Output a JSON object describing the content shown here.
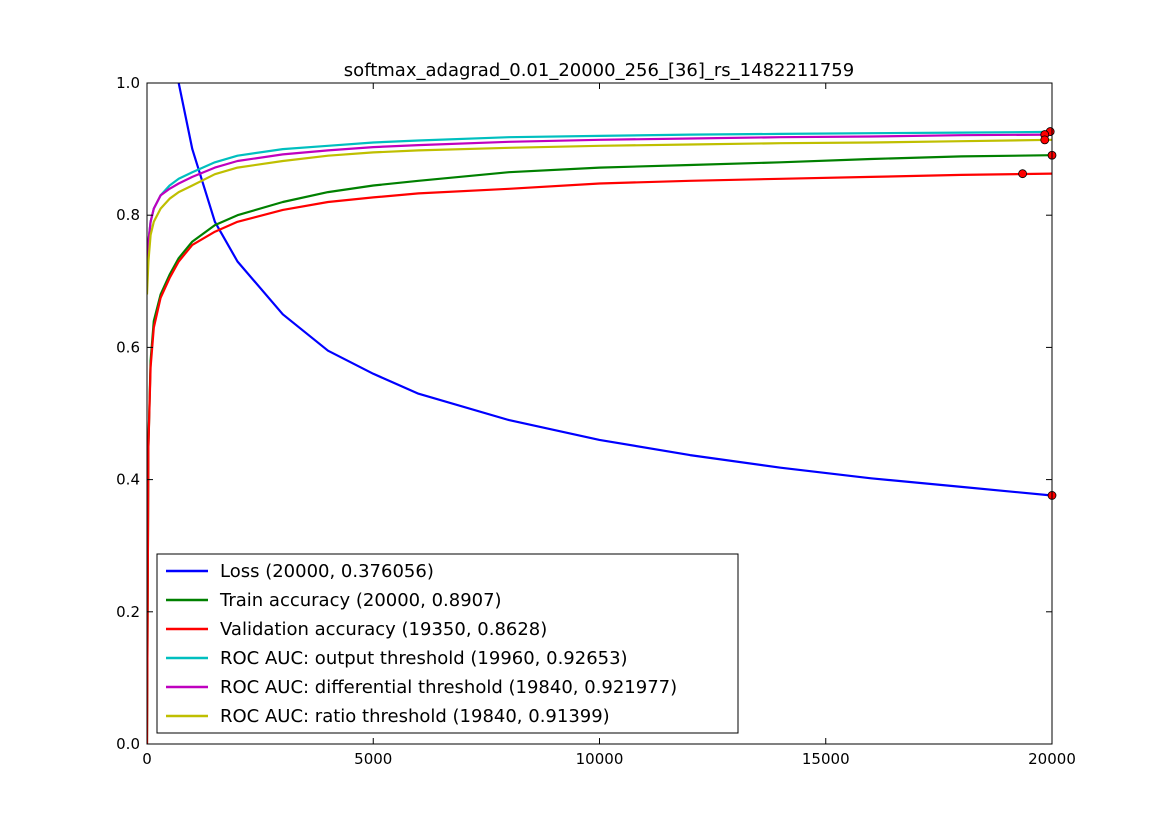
{
  "chart_data": {
    "type": "line",
    "title": "softmax_adagrad_0.01_20000_256_[36]_rs_1482211759",
    "xlabel": "",
    "ylabel": "",
    "xlim": [
      0,
      20000
    ],
    "ylim": [
      0.0,
      1.0
    ],
    "xticks": [
      0,
      5000,
      10000,
      15000,
      20000
    ],
    "yticks": [
      0.0,
      0.2,
      0.4,
      0.6,
      0.8,
      1.0
    ],
    "xtick_labels": [
      "0",
      "5000",
      "10000",
      "15000",
      "20000"
    ],
    "ytick_labels": [
      "0.0",
      "0.2",
      "0.4",
      "0.6",
      "0.8",
      "1.0"
    ],
    "grid": false,
    "legend_position": "lower-left",
    "series": [
      {
        "name": "Loss (20000, 0.376056)",
        "color": "#0000ff",
        "x": [
          700,
          1000,
          1500,
          2000,
          3000,
          4000,
          5000,
          6000,
          8000,
          10000,
          12000,
          14000,
          16000,
          18000,
          20000
        ],
        "y": [
          1.0,
          0.9,
          0.79,
          0.73,
          0.65,
          0.595,
          0.56,
          0.53,
          0.49,
          0.46,
          0.437,
          0.418,
          0.402,
          0.389,
          0.376
        ],
        "marker": {
          "x": 20000,
          "y": 0.376056
        }
      },
      {
        "name": "Train accuracy (20000, 0.8907)",
        "color": "#008000",
        "x": [
          0,
          30,
          80,
          150,
          300,
          500,
          700,
          1000,
          1500,
          2000,
          3000,
          4000,
          5000,
          6000,
          8000,
          10000,
          12000,
          14000,
          16000,
          18000,
          20000
        ],
        "y": [
          0.0,
          0.45,
          0.58,
          0.64,
          0.68,
          0.71,
          0.735,
          0.76,
          0.785,
          0.8,
          0.82,
          0.835,
          0.845,
          0.852,
          0.865,
          0.872,
          0.876,
          0.88,
          0.885,
          0.889,
          0.8907
        ],
        "marker": {
          "x": 20000,
          "y": 0.8907
        }
      },
      {
        "name": "Validation accuracy (19350, 0.8628)",
        "color": "#ff0000",
        "x": [
          0,
          30,
          80,
          150,
          300,
          500,
          700,
          1000,
          1500,
          2000,
          3000,
          4000,
          5000,
          6000,
          8000,
          10000,
          12000,
          14000,
          16000,
          18000,
          20000
        ],
        "y": [
          0.0,
          0.45,
          0.57,
          0.63,
          0.675,
          0.705,
          0.73,
          0.755,
          0.775,
          0.79,
          0.808,
          0.82,
          0.827,
          0.833,
          0.84,
          0.848,
          0.852,
          0.855,
          0.858,
          0.861,
          0.863
        ],
        "marker": {
          "x": 19350,
          "y": 0.8628
        }
      },
      {
        "name": "ROC AUC: output threshold (19960, 0.92653)",
        "color": "#00bfbf",
        "x": [
          0,
          30,
          80,
          150,
          300,
          500,
          700,
          1000,
          1500,
          2000,
          3000,
          4000,
          5000,
          6000,
          8000,
          10000,
          12000,
          14000,
          16000,
          18000,
          20000
        ],
        "y": [
          0.72,
          0.76,
          0.79,
          0.81,
          0.83,
          0.845,
          0.855,
          0.865,
          0.88,
          0.89,
          0.9,
          0.905,
          0.91,
          0.913,
          0.918,
          0.92,
          0.922,
          0.923,
          0.924,
          0.925,
          0.926
        ],
        "marker": {
          "x": 19960,
          "y": 0.92653
        }
      },
      {
        "name": "ROC AUC: differential threshold (19840, 0.921977)",
        "color": "#bf00bf",
        "x": [
          0,
          30,
          80,
          150,
          300,
          500,
          700,
          1000,
          1500,
          2000,
          3000,
          4000,
          5000,
          6000,
          8000,
          10000,
          12000,
          14000,
          16000,
          18000,
          20000
        ],
        "y": [
          0.72,
          0.76,
          0.79,
          0.81,
          0.83,
          0.84,
          0.848,
          0.858,
          0.872,
          0.882,
          0.892,
          0.898,
          0.903,
          0.906,
          0.911,
          0.914,
          0.916,
          0.918,
          0.919,
          0.921,
          0.922
        ],
        "marker": {
          "x": 19840,
          "y": 0.921977
        }
      },
      {
        "name": "ROC AUC: ratio threshold (19840, 0.91399)",
        "color": "#bfbf00",
        "x": [
          0,
          30,
          80,
          150,
          300,
          500,
          700,
          1000,
          1500,
          2000,
          3000,
          4000,
          5000,
          6000,
          8000,
          10000,
          12000,
          14000,
          16000,
          18000,
          20000
        ],
        "y": [
          0.68,
          0.73,
          0.77,
          0.79,
          0.81,
          0.825,
          0.835,
          0.845,
          0.862,
          0.872,
          0.882,
          0.89,
          0.895,
          0.898,
          0.902,
          0.905,
          0.907,
          0.909,
          0.91,
          0.912,
          0.914
        ],
        "marker": {
          "x": 19840,
          "y": 0.91399
        }
      }
    ]
  }
}
